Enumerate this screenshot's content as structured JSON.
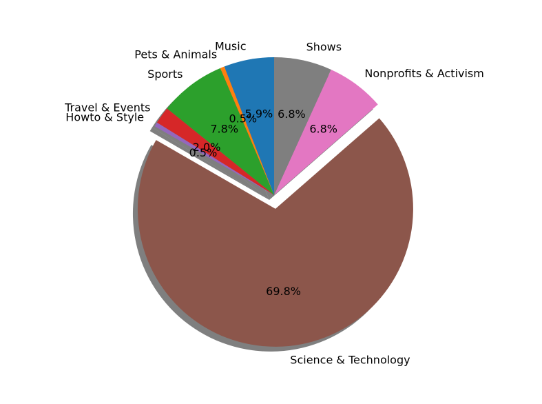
{
  "chart_data": {
    "type": "pie",
    "slices": [
      {
        "label": "Music",
        "value": 5.9,
        "pct_label": "5.9%",
        "color": "#1f77b4",
        "explode": false
      },
      {
        "label": "Pets & Animals",
        "value": 0.5,
        "pct_label": "0.5%",
        "color": "#ff7f0e",
        "explode": false
      },
      {
        "label": "Sports",
        "value": 7.8,
        "pct_label": "7.8%",
        "color": "#2ca02c",
        "explode": false
      },
      {
        "label": "Travel & Events",
        "value": 2.0,
        "pct_label": "2.0%",
        "color": "#d62728",
        "explode": false
      },
      {
        "label": "Howto & Style",
        "value": 0.5,
        "pct_label": "0.5%",
        "color": "#9467bd",
        "explode": false
      },
      {
        "label": "Science & Technology",
        "value": 69.8,
        "pct_label": "69.8%",
        "color": "#8c564b",
        "explode": true
      },
      {
        "label": "Nonprofits & Activism",
        "value": 6.8,
        "pct_label": "6.8%",
        "color": "#e377c2",
        "explode": false
      },
      {
        "label": "Shows",
        "value": 6.8,
        "pct_label": "6.8%",
        "color": "#7f7f7f",
        "explode": false
      }
    ],
    "start_angle_deg": 90,
    "direction": "counterclockwise",
    "shadow": true
  }
}
